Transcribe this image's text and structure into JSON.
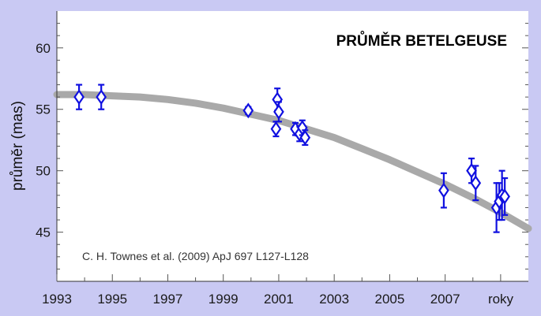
{
  "chart_data": {
    "type": "scatter",
    "title": "PRŮMĚR BETELGEUSE",
    "ylabel": "průměr (mas)",
    "xlabel": "roky",
    "annotation": "C. H. Townes et al. (2009) ApJ 697 L127-L128",
    "xlim": [
      1993,
      2010
    ],
    "ylim": [
      41,
      63
    ],
    "x_ticks": [
      1993,
      1995,
      1997,
      1999,
      2001,
      2003,
      2005,
      2007
    ],
    "x_tick_labels": [
      "1993",
      "1995",
      "1997",
      "1999",
      "2001",
      "2003",
      "2005",
      "2007"
    ],
    "y_ticks": [
      45,
      50,
      55,
      60
    ],
    "y_tick_labels": [
      "45",
      "50",
      "55",
      "60"
    ],
    "grid": false,
    "colors": {
      "points": "#1010e0",
      "trend": "#a9a9a9",
      "plot_bg": "#ffffff",
      "frame_bg": "#c9c9f3"
    },
    "series": [
      {
        "points": [
          {
            "x": 1993.8,
            "y": 56.0,
            "err": 1.0
          },
          {
            "x": 1994.6,
            "y": 56.0,
            "err": 1.0
          },
          {
            "x": 1999.9,
            "y": 54.9,
            "err": 0.3
          },
          {
            "x": 2000.9,
            "y": 53.4,
            "err": 0.6
          },
          {
            "x": 2000.95,
            "y": 55.8,
            "err": 0.9
          },
          {
            "x": 2001.0,
            "y": 54.8,
            "err": 0.8
          },
          {
            "x": 2001.6,
            "y": 53.4,
            "err": 0.5
          },
          {
            "x": 2001.75,
            "y": 53.0,
            "err": 0.6
          },
          {
            "x": 2001.85,
            "y": 53.5,
            "err": 0.6
          },
          {
            "x": 2001.95,
            "y": 52.7,
            "err": 0.6
          },
          {
            "x": 2006.95,
            "y": 48.4,
            "err": 1.4
          },
          {
            "x": 2007.95,
            "y": 50.0,
            "err": 1.0
          },
          {
            "x": 2008.1,
            "y": 49.0,
            "err": 1.4
          },
          {
            "x": 2008.85,
            "y": 47.0,
            "err": 2.0
          },
          {
            "x": 2008.95,
            "y": 47.5,
            "err": 1.5
          },
          {
            "x": 2009.05,
            "y": 48.0,
            "err": 2.0
          },
          {
            "x": 2009.15,
            "y": 47.9,
            "err": 1.5
          }
        ]
      }
    ],
    "trend": {
      "x": [
        1993,
        1994,
        1995,
        1996,
        1997,
        1998,
        1999,
        2000,
        2001,
        2002,
        2003,
        2004,
        2005,
        2006,
        2007,
        2008,
        2009,
        2010
      ],
      "y": [
        56.2,
        56.2,
        56.1,
        56.0,
        55.8,
        55.5,
        55.1,
        54.6,
        54.1,
        53.4,
        52.7,
        51.8,
        50.9,
        49.9,
        48.9,
        47.8,
        46.6,
        45.3
      ]
    }
  }
}
